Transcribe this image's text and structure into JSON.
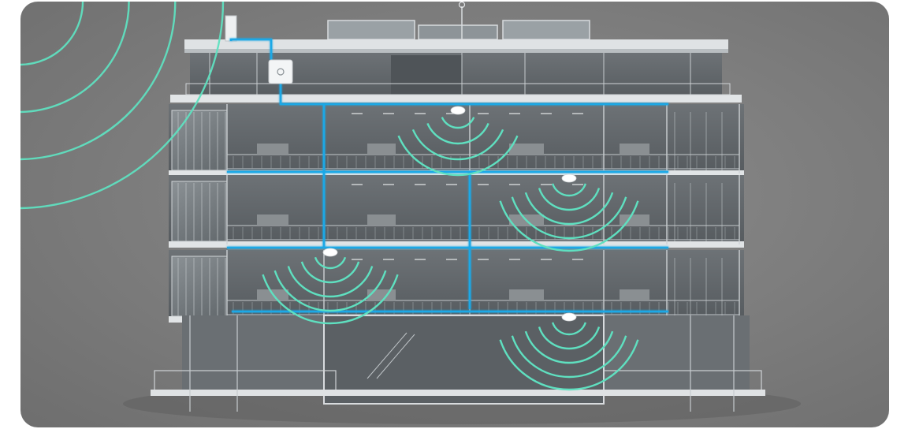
{
  "scene": {
    "subject": "building-cross-section",
    "floors": 5,
    "colors": {
      "background": "#7d7d7d",
      "structure": "#d9dcdf",
      "interior": "#5f6468",
      "glass": "#8f979c",
      "network_line": "#1aa8e6",
      "signal_ring": "#5fe0c0",
      "access_point": "#ffffff"
    },
    "icons": [
      "router-icon",
      "access-point-icon",
      "antenna-icon",
      "signal-wave-icon"
    ]
  }
}
